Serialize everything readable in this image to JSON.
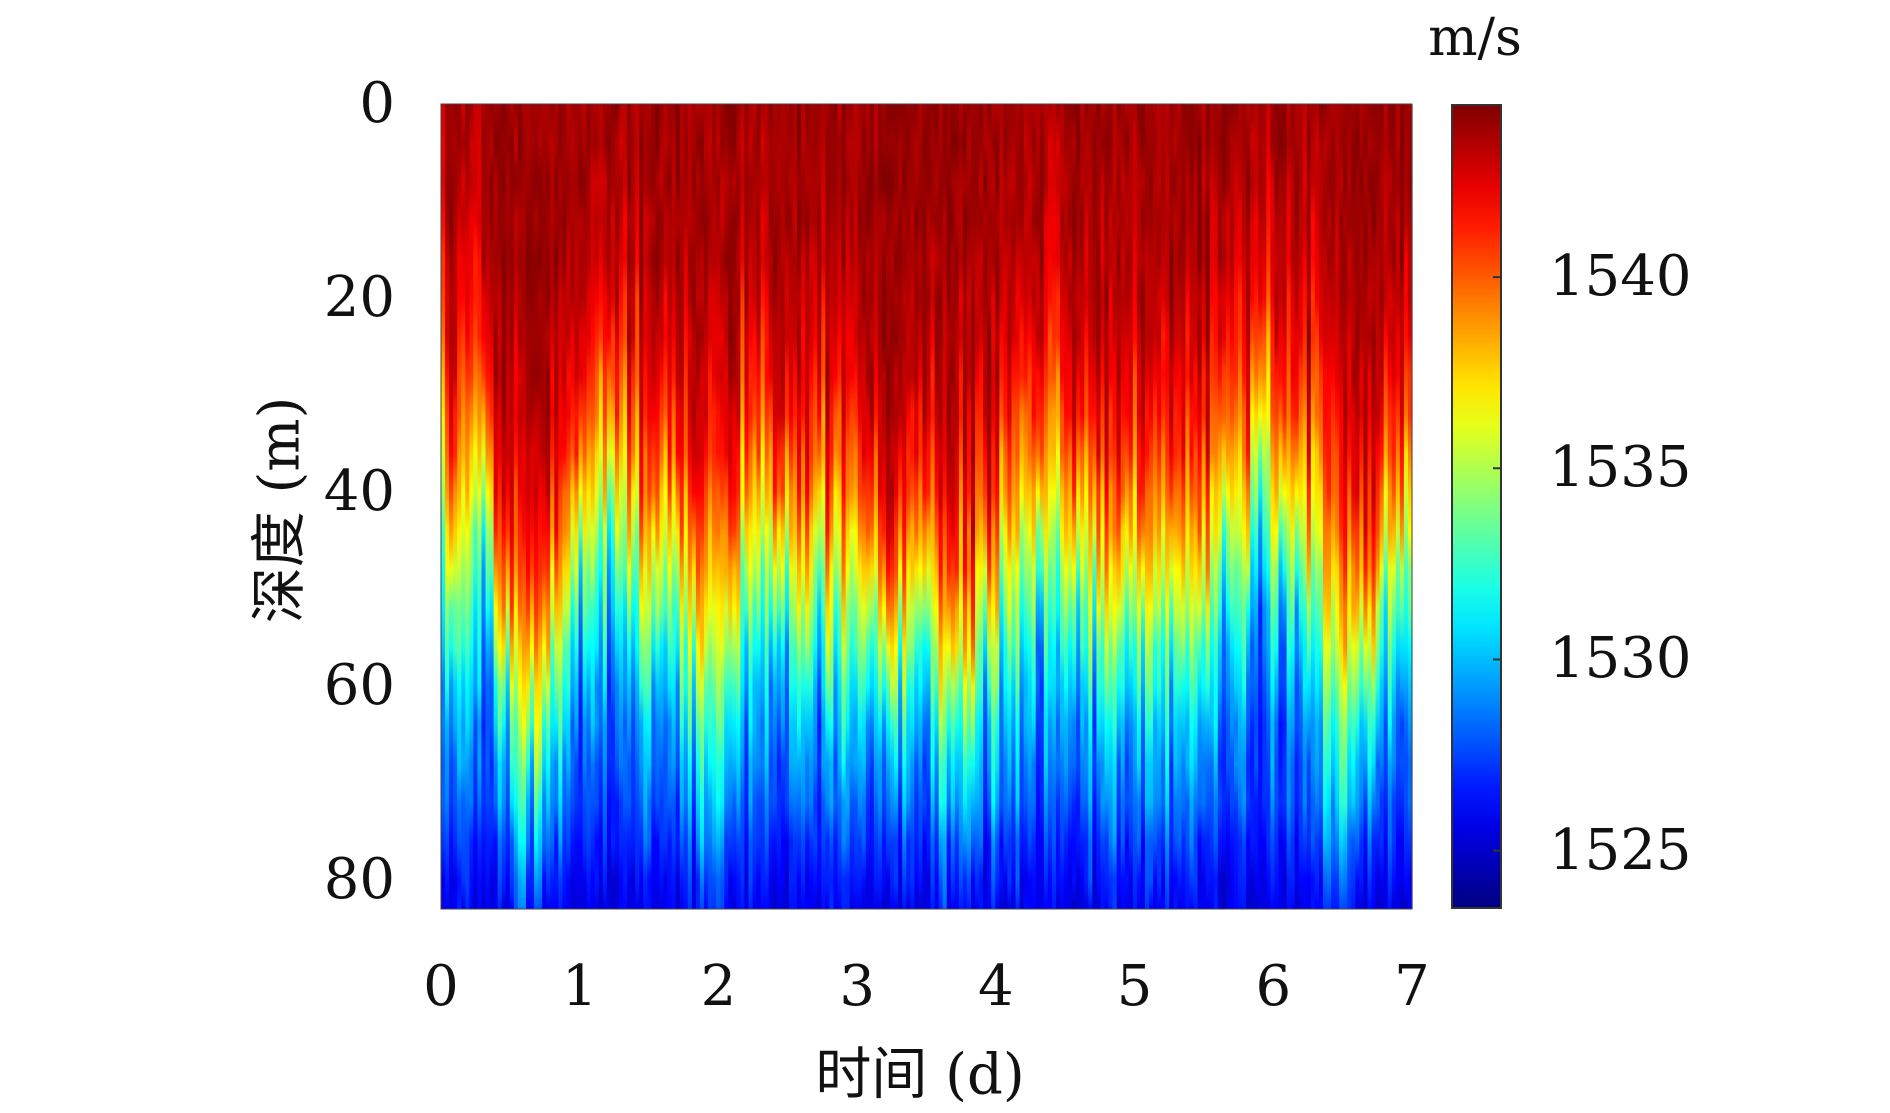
{
  "chart_data": {
    "type": "heatmap",
    "xlabel": "时间 (d)",
    "ylabel": "深度 (m)",
    "xlim": [
      0,
      7
    ],
    "ylim": [
      0,
      83
    ],
    "y_inverted": true,
    "xticks": [
      "0",
      "1",
      "2",
      "3",
      "4",
      "5",
      "6",
      "7"
    ],
    "yticks": [
      "0",
      "20",
      "40",
      "60",
      "80"
    ],
    "colorbar": {
      "label": "m/s",
      "colormap": "jet",
      "range": [
        1523.5,
        1544.5
      ],
      "ticks": [
        "1525",
        "1530",
        "1535",
        "1540"
      ]
    },
    "transition_depth_profile": {
      "description_x_days": [
        0.0,
        0.3,
        0.5,
        0.7,
        0.9,
        1.1,
        1.3,
        1.5,
        1.7,
        1.9,
        2.1,
        2.3,
        2.5,
        2.7,
        2.9,
        3.1,
        3.3,
        3.5,
        3.7,
        3.9,
        4.1,
        4.3,
        4.5,
        4.7,
        4.9,
        5.1,
        5.3,
        5.5,
        5.7,
        5.9,
        6.1,
        6.3,
        6.5,
        6.7,
        6.9,
        7.0
      ],
      "depth_m": [
        44,
        42,
        58,
        64,
        50,
        40,
        44,
        48,
        52,
        56,
        50,
        46,
        48,
        50,
        52,
        54,
        56,
        56,
        60,
        54,
        48,
        44,
        46,
        50,
        52,
        54,
        50,
        48,
        44,
        40,
        42,
        50,
        60,
        54,
        46,
        44
      ]
    },
    "surface_speed": 1544,
    "bottom_speed": 1526.5
  }
}
